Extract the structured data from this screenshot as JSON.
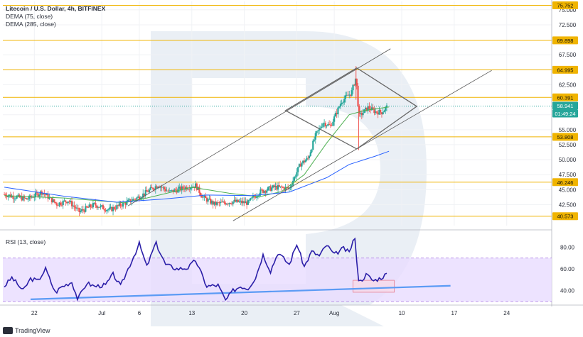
{
  "legend": {
    "title": "Litecoin / U.S. Dollar, 4h, BITFINEX",
    "dema75": "DEMA (75, close)",
    "dema285": "DEMA (285, close)",
    "rsi": "RSI (13, close)"
  },
  "brand": {
    "name": "TradingView"
  },
  "colors": {
    "up": "#26a69a",
    "down": "#ef5350",
    "dema75": "#4caf50",
    "dema285": "#2962ff",
    "rsi": "#2b1fa8",
    "level": "#f0b400",
    "channel": "#555555",
    "rsi_band": "#e9dcff",
    "support_line": "#5b9bf5"
  },
  "chart_data": [
    {
      "type": "candlestick",
      "title": "Litecoin / U.S. Dollar, 4h, BITFINEX",
      "x_tick_labels": [
        "22",
        "Jul",
        "6",
        "13",
        "20",
        "27",
        "Aug",
        "10",
        "17",
        "24"
      ],
      "x_ticks_day": [
        -9,
        0,
        5,
        12,
        19,
        26,
        31,
        40,
        47,
        54
      ],
      "y_tick_labels": [
        "42.500",
        "45.000",
        "47.500",
        "50.000",
        "52.500",
        "55.000",
        "57.500",
        "62.500",
        "65.000",
        "67.500",
        "72.500",
        "75.000"
      ],
      "ylim": [
        39.0,
        76.4
      ],
      "xlim_day": [
        -13.2,
        60.0
      ],
      "price_levels": [
        {
          "value": 75.752,
          "label": "75.752"
        },
        {
          "value": 69.898,
          "label": "69.898"
        },
        {
          "value": 64.995,
          "label": "64.995"
        },
        {
          "value": 60.391,
          "label": "60.391"
        },
        {
          "value": 53.808,
          "label": "53.808"
        },
        {
          "value": 46.246,
          "label": "46.246"
        },
        {
          "value": 40.573,
          "label": "40.573"
        }
      ],
      "current_price": {
        "value": 58.941,
        "label": "58.941",
        "countdown": "01:49:24"
      },
      "ohlc_keypoints": [
        {
          "day": -13,
          "price": 44.2
        },
        {
          "day": -10,
          "price": 43.4
        },
        {
          "day": -8,
          "price": 44.6
        },
        {
          "day": -6,
          "price": 42.6
        },
        {
          "day": -4.5,
          "price": 43.2
        },
        {
          "day": -3,
          "price": 41.3
        },
        {
          "day": -1,
          "price": 42.5
        },
        {
          "day": 1,
          "price": 41.6
        },
        {
          "day": 3,
          "price": 42.7
        },
        {
          "day": 5,
          "price": 43.8
        },
        {
          "day": 6.5,
          "price": 45.0
        },
        {
          "day": 7.5,
          "price": 45.8
        },
        {
          "day": 9,
          "price": 44.6
        },
        {
          "day": 11,
          "price": 45.3
        },
        {
          "day": 12.5,
          "price": 45.7
        },
        {
          "day": 13.5,
          "price": 43.7
        },
        {
          "day": 15,
          "price": 42.6
        },
        {
          "day": 17.5,
          "price": 43.0
        },
        {
          "day": 19.5,
          "price": 42.8
        },
        {
          "day": 21,
          "price": 44.6
        },
        {
          "day": 23,
          "price": 45.4
        },
        {
          "day": 25,
          "price": 45.2
        },
        {
          "day": 26.5,
          "price": 49.3
        },
        {
          "day": 27.5,
          "price": 50.2
        },
        {
          "day": 28.5,
          "price": 54.0
        },
        {
          "day": 29.5,
          "price": 56.2
        },
        {
          "day": 30.5,
          "price": 55.6
        },
        {
          "day": 32,
          "price": 59.8
        },
        {
          "day": 33.3,
          "price": 61.2
        },
        {
          "day": 33.9,
          "price": 63.8
        },
        {
          "day": 34.3,
          "price": 57.2
        },
        {
          "day": 35.5,
          "price": 58.7
        },
        {
          "day": 36.5,
          "price": 58.0
        },
        {
          "day": 37.3,
          "price": 57.9
        },
        {
          "day": 38.1,
          "price": 58.9
        }
      ],
      "dema75": [
        {
          "day": -13,
          "price": 44.0
        },
        {
          "day": -5,
          "price": 43.6
        },
        {
          "day": 3,
          "price": 42.8
        },
        {
          "day": 6,
          "price": 43.6
        },
        {
          "day": 12,
          "price": 45.4
        },
        {
          "day": 17,
          "price": 44.4
        },
        {
          "day": 21,
          "price": 43.8
        },
        {
          "day": 24,
          "price": 44.7
        },
        {
          "day": 27,
          "price": 47.5
        },
        {
          "day": 30,
          "price": 52.8
        },
        {
          "day": 33,
          "price": 57.5
        },
        {
          "day": 35,
          "price": 58.2
        },
        {
          "day": 38.3,
          "price": 58.8
        }
      ],
      "dema285": [
        {
          "day": -13,
          "price": 45.4
        },
        {
          "day": -5,
          "price": 43.9
        },
        {
          "day": 2,
          "price": 42.9
        },
        {
          "day": 8,
          "price": 43.4
        },
        {
          "day": 14,
          "price": 44.1
        },
        {
          "day": 20,
          "price": 44.0
        },
        {
          "day": 25,
          "price": 44.6
        },
        {
          "day": 30,
          "price": 47.0
        },
        {
          "day": 33,
          "price": 49.2
        },
        {
          "day": 36.5,
          "price": 50.6
        },
        {
          "day": 38.3,
          "price": 51.4
        }
      ],
      "channel_lines": [
        {
          "from": {
            "day": 3.5,
            "price": 42.3
          },
          "to": {
            "day": 38.5,
            "price": 68.5
          }
        },
        {
          "from": {
            "day": 17.5,
            "price": 39.8
          },
          "to": {
            "day": 52.0,
            "price": 64.9
          }
        }
      ],
      "diamond": [
        {
          "day": 34.0,
          "price": 65.3
        },
        {
          "day": 42.0,
          "price": 58.9
        },
        {
          "day": 34.0,
          "price": 51.8
        },
        {
          "day": 24.5,
          "price": 58.2
        }
      ]
    },
    {
      "type": "line",
      "title": "RSI (13, close)",
      "y_tick_labels": [
        "40.00",
        "60.00",
        "80.00"
      ],
      "ylim": [
        28,
        92
      ],
      "overbought": 70,
      "oversold": 30,
      "rsi_values": [
        {
          "day": -13,
          "price": 44
        },
        {
          "day": -12,
          "price": 52
        },
        {
          "day": -10.5,
          "price": 40
        },
        {
          "day": -9.5,
          "price": 51
        },
        {
          "day": -8.5,
          "price": 49
        },
        {
          "day": -7.5,
          "price": 60
        },
        {
          "day": -6.2,
          "price": 38
        },
        {
          "day": -5.5,
          "price": 43
        },
        {
          "day": -4,
          "price": 48
        },
        {
          "day": -3.2,
          "price": 32
        },
        {
          "day": -2,
          "price": 47
        },
        {
          "day": -1,
          "price": 44
        },
        {
          "day": 0.5,
          "price": 45
        },
        {
          "day": 1.5,
          "price": 55
        },
        {
          "day": 2.5,
          "price": 44
        },
        {
          "day": 3.5,
          "price": 60
        },
        {
          "day": 5,
          "price": 83
        },
        {
          "day": 6,
          "price": 62
        },
        {
          "day": 7.2,
          "price": 84
        },
        {
          "day": 8.5,
          "price": 64
        },
        {
          "day": 10,
          "price": 60
        },
        {
          "day": 11.5,
          "price": 61
        },
        {
          "day": 12.5,
          "price": 68
        },
        {
          "day": 14,
          "price": 44
        },
        {
          "day": 15.5,
          "price": 45
        },
        {
          "day": 16.5,
          "price": 31
        },
        {
          "day": 17.5,
          "price": 40
        },
        {
          "day": 18.5,
          "price": 44
        },
        {
          "day": 19.5,
          "price": 42
        },
        {
          "day": 20.5,
          "price": 52
        },
        {
          "day": 21.5,
          "price": 73
        },
        {
          "day": 22.5,
          "price": 58
        },
        {
          "day": 23.5,
          "price": 75
        },
        {
          "day": 25,
          "price": 64
        },
        {
          "day": 26,
          "price": 83
        },
        {
          "day": 27,
          "price": 62
        },
        {
          "day": 28,
          "price": 76
        },
        {
          "day": 29,
          "price": 72
        },
        {
          "day": 30,
          "price": 82
        },
        {
          "day": 31,
          "price": 73
        },
        {
          "day": 32.2,
          "price": 79
        },
        {
          "day": 33,
          "price": 75
        },
        {
          "day": 33.7,
          "price": 90
        },
        {
          "day": 34.3,
          "price": 47
        },
        {
          "day": 35.3,
          "price": 55
        },
        {
          "day": 36.2,
          "price": 49
        },
        {
          "day": 37.3,
          "price": 52
        },
        {
          "day": 38.1,
          "price": 56
        }
      ],
      "support_line": {
        "from": {
          "day": -9.5,
          "price": 32.0
        },
        "to": {
          "day": 46.5,
          "price": 44.5
        }
      },
      "highlight_box": {
        "from": {
          "day": 33.5,
          "price": 49.5
        },
        "to": {
          "day": 39.0,
          "price": 38.5
        }
      }
    }
  ]
}
